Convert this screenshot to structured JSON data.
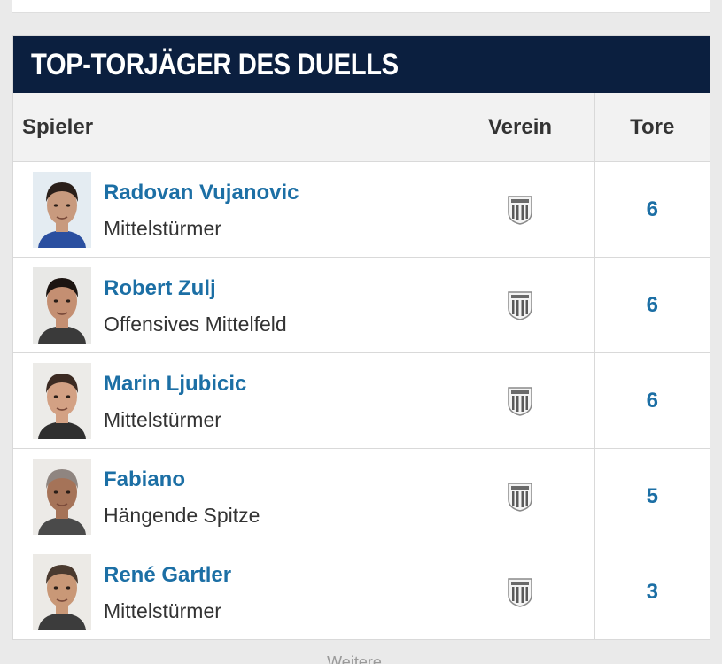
{
  "section_title": "TOP-TORJÄGER DES DUELLS",
  "columns": {
    "player": "Spieler",
    "club": "Verein",
    "goals": "Tore"
  },
  "players": [
    {
      "name": "Radovan Vujanovic",
      "position": "Mittelstürmer",
      "goals": "6",
      "club_icon": "club-crest-icon",
      "portrait": {
        "hair": "#2a1f1a",
        "skin": "#c89a7e",
        "shirt": "#2a4fa0",
        "bg": "#e4ecf2"
      }
    },
    {
      "name": "Robert Zulj",
      "position": "Offensives Mittelfeld",
      "goals": "6",
      "club_icon": "club-crest-icon",
      "portrait": {
        "hair": "#1c1411",
        "skin": "#c48f72",
        "shirt": "#3a3a3a",
        "bg": "#e8e8e6"
      }
    },
    {
      "name": "Marin Ljubicic",
      "position": "Mittelstürmer",
      "goals": "6",
      "club_icon": "club-crest-icon",
      "portrait": {
        "hair": "#3b2a22",
        "skin": "#d3a184",
        "shirt": "#2f2f2f",
        "bg": "#ecebe8"
      }
    },
    {
      "name": "Fabiano",
      "position": "Hängende Spitze",
      "goals": "5",
      "club_icon": "club-crest-icon",
      "portrait": {
        "hair": "#8f8580",
        "skin": "#a57358",
        "shirt": "#4a4a4a",
        "bg": "#eceae7"
      }
    },
    {
      "name": "René Gartler",
      "position": "Mittelstürmer",
      "goals": "3",
      "club_icon": "club-crest-icon",
      "portrait": {
        "hair": "#4a3a2f",
        "skin": "#c99877",
        "shirt": "#3c3c3c",
        "bg": "#eceae6"
      }
    }
  ],
  "footer_hint": "Weitere"
}
